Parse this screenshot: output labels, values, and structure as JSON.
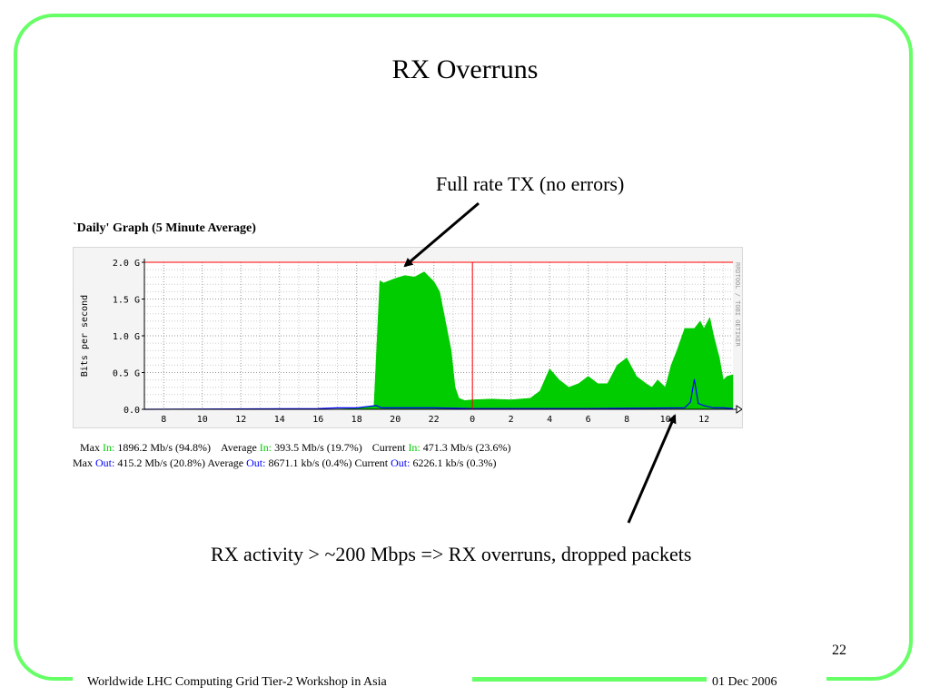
{
  "slide": {
    "title": "RX Overruns",
    "annotation_top": "Full rate TX (no errors)",
    "annotation_bottom": "RX activity > ~200 Mbps  => RX overruns, dropped packets",
    "page_number": "22",
    "footer_left": "Worldwide LHC Computing Grid Tier-2 Workshop in Asia",
    "footer_right": "01 Dec 2006",
    "frame_color": "#66ff66"
  },
  "graph": {
    "title": "`Daily' Graph (5 Minute Average)",
    "watermark": "RRDTOOL / TOBI OETIKER",
    "stats_in": {
      "max_label": "Max",
      "in_label": "In:",
      "max_value": "1896.2 Mb/s (94.8%)",
      "avg_label": "Average",
      "avg_value": "393.5 Mb/s (19.7%)",
      "cur_label": "Current",
      "cur_value": "471.3 Mb/s (23.6%)"
    },
    "stats_out": {
      "max_label": "Max",
      "out_label": "Out:",
      "max_value": "415.2 Mb/s (20.8%)",
      "avg_label": "Average",
      "avg_value": "8671.1 kb/s (0.4%)",
      "cur_label": "Current",
      "cur_value": "6226.1 kb/s (0.3%)"
    },
    "colors": {
      "in": "#00cc00",
      "out": "#0000ff",
      "limit": "#ff0000",
      "grid": "#999999"
    }
  },
  "chart_data": {
    "type": "area",
    "title": "`Daily' Graph (5 Minute Average)",
    "xlabel": "",
    "ylabel": "Bits per second",
    "x_tick_labels": [
      "8",
      "10",
      "12",
      "14",
      "16",
      "18",
      "20",
      "22",
      "0",
      "2",
      "4",
      "6",
      "8",
      "10",
      "12"
    ],
    "y_tick_labels": [
      "0.0",
      "0.5 G",
      "1.0 G",
      "1.5 G",
      "2.0 G"
    ],
    "ylim": [
      0,
      2.0
    ],
    "y_unit": "Gbps",
    "grid": true,
    "limit_line": 2.0,
    "day_boundary_hour": 24,
    "xlim_hours": [
      7,
      37.5
    ],
    "series": [
      {
        "name": "In",
        "color": "#00cc00",
        "x_hours": [
          7,
          12,
          16,
          18,
          18.9,
          19.2,
          19.4,
          20,
          20.5,
          21,
          21.5,
          22,
          22.3,
          22.6,
          22.9,
          23.1,
          23.3,
          23.6,
          24,
          25,
          26,
          27,
          27.5,
          28,
          28.5,
          29,
          29.5,
          30,
          30.5,
          31,
          31.5,
          32,
          32.5,
          33,
          33.3,
          33.6,
          34,
          34.3,
          34.6,
          35,
          35.5,
          35.8,
          36,
          36.3,
          36.5,
          36.8,
          37,
          37.2,
          37.5
        ],
        "values": [
          0,
          0,
          0,
          0.01,
          0.05,
          1.75,
          1.72,
          1.78,
          1.82,
          1.8,
          1.87,
          1.74,
          1.6,
          1.2,
          0.8,
          0.3,
          0.15,
          0.12,
          0.13,
          0.14,
          0.13,
          0.15,
          0.25,
          0.55,
          0.4,
          0.3,
          0.35,
          0.45,
          0.35,
          0.35,
          0.6,
          0.7,
          0.45,
          0.35,
          0.3,
          0.4,
          0.3,
          0.6,
          0.8,
          1.1,
          1.1,
          1.2,
          1.1,
          1.25,
          1.0,
          0.7,
          0.4,
          0.45,
          0.47
        ]
      },
      {
        "name": "Out",
        "color": "#0000ff",
        "x_hours": [
          7,
          16,
          17,
          18,
          19,
          19.3,
          20,
          22,
          24,
          30,
          35,
          35.3,
          35.5,
          35.7,
          36,
          36.5,
          37,
          37.5
        ],
        "values": [
          0,
          0.01,
          0.02,
          0.02,
          0.05,
          0.02,
          0.02,
          0.02,
          0.01,
          0.01,
          0.02,
          0.1,
          0.41,
          0.08,
          0.05,
          0.02,
          0.02,
          0.01
        ]
      }
    ]
  }
}
